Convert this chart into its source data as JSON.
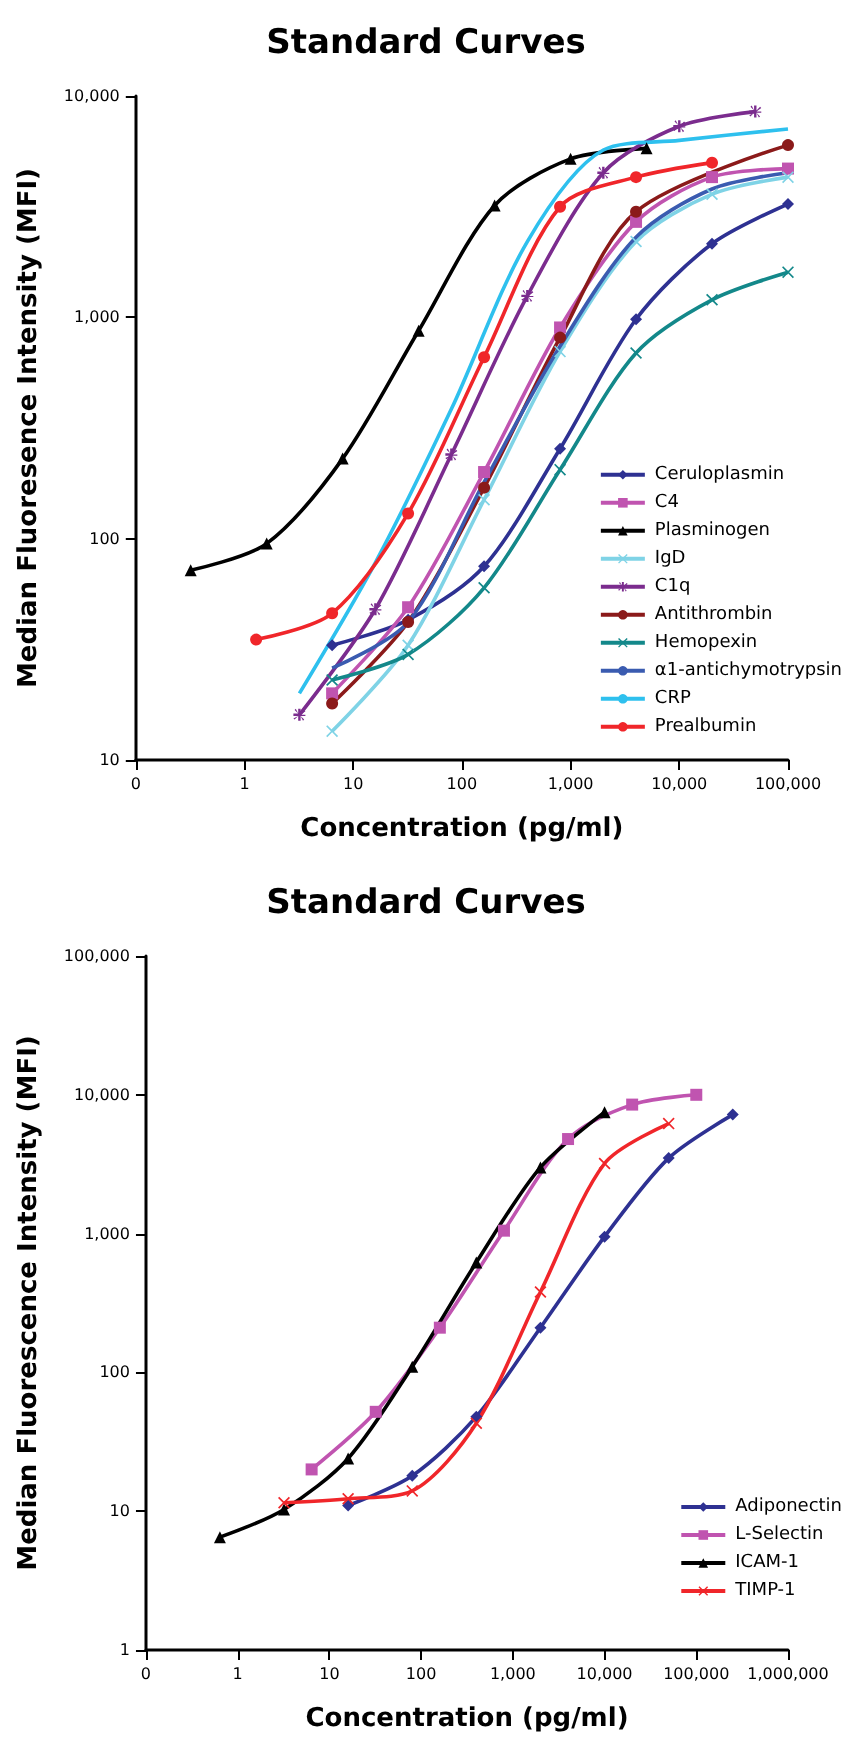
{
  "chart_data": [
    {
      "type": "line",
      "title": "Standard Curves",
      "xlabel": "Concentration (pg/ml)",
      "ylabel": "Median Fluoresence Intensity (MFI)",
      "log": "xy",
      "grid": false,
      "legend": "right",
      "xlim": [
        0.1,
        100000
      ],
      "xticks": [
        {
          "value": 0.1,
          "label": "0"
        },
        1,
        10,
        100,
        {
          "value": 1000,
          "label": "1,000"
        },
        {
          "value": 10000,
          "label": "10,000"
        },
        {
          "value": 100000,
          "label": "100,000"
        }
      ],
      "ylim": [
        10,
        10000
      ],
      "yticks": [
        10,
        100,
        {
          "value": 1000,
          "label": "1,000"
        },
        {
          "value": 10000,
          "label": "10,000"
        }
      ],
      "series": [
        {
          "name": "Ceruloplasmin",
          "color": "#2e3192",
          "marker": "diamond",
          "x": [
            6.4,
            32,
            160,
            800,
            4000,
            20000,
            100000
          ],
          "values": [
            33,
            43,
            75,
            255,
            980,
            2150,
            3250
          ]
        },
        {
          "name": "C4",
          "color": "#c054b0",
          "marker": "square",
          "x": [
            6.4,
            32,
            160,
            800,
            4000,
            20000,
            100000
          ],
          "values": [
            20,
            49,
            200,
            900,
            2700,
            4300,
            4700
          ]
        },
        {
          "name": "Plasminogen",
          "color": "#000000",
          "marker": "triangle",
          "x": [
            0.32,
            1.6,
            8,
            40,
            200,
            1000,
            5000
          ],
          "values": [
            72,
            95,
            230,
            870,
            3200,
            5200,
            5800
          ]
        },
        {
          "name": "IgD",
          "color": "#7fd3e6",
          "marker": "cross",
          "x": [
            6.4,
            32,
            160,
            800,
            4000,
            20000,
            100000
          ],
          "values": [
            13.5,
            33,
            150,
            700,
            2200,
            3600,
            4300
          ]
        },
        {
          "name": "C1q",
          "color": "#7b2c8e",
          "marker": "star",
          "x": [
            3.2,
            16,
            80,
            400,
            2000,
            10000,
            50000
          ],
          "values": [
            16,
            48,
            240,
            1250,
            4500,
            7300,
            8500
          ]
        },
        {
          "name": "Antithrombin",
          "color": "#8b1a1a",
          "marker": "circle",
          "x": [
            6.4,
            32,
            160,
            800,
            4000,
            100000
          ],
          "values": [
            18,
            42,
            170,
            810,
            3000,
            6000
          ]
        },
        {
          "name": "Hemopexin",
          "color": "#13888a",
          "marker": "cross",
          "x": [
            6.4,
            32,
            160,
            800,
            4000,
            20000,
            100000
          ],
          "values": [
            23,
            30,
            60,
            205,
            690,
            1200,
            1600
          ]
        },
        {
          "name": "α1-antichymotrypsin",
          "color": "#3a5bb0",
          "marker": "none",
          "x": [
            6.4,
            32,
            160,
            800,
            4000,
            20000,
            100000
          ],
          "values": [
            26,
            42,
            180,
            740,
            2300,
            3800,
            4500
          ]
        },
        {
          "name": "CRP",
          "color": "#2ec0ee",
          "marker": "none",
          "x": [
            3.2,
            16,
            80,
            400,
            2000,
            10000,
            100000
          ],
          "values": [
            20,
            78,
            385,
            2200,
            5700,
            6300,
            7100
          ]
        },
        {
          "name": "Prealbumin",
          "color": "#f0262a",
          "marker": "circle",
          "x": [
            1.28,
            6.4,
            32,
            160,
            800,
            4000,
            20000
          ],
          "values": [
            35,
            46,
            130,
            660,
            3160,
            4300,
            5000
          ]
        }
      ]
    },
    {
      "type": "line",
      "title": "Standard Curves",
      "xlabel": "Concentration (pg/ml)",
      "ylabel": "Median Fluorescence Intensity (MFI)",
      "log": "xy",
      "grid": false,
      "legend": "bottom right",
      "xlim": [
        0.1,
        1000000
      ],
      "xticks": [
        {
          "value": 0.1,
          "label": "0"
        },
        1,
        10,
        100,
        {
          "value": 1000,
          "label": "1,000"
        },
        {
          "value": 10000,
          "label": "10,000"
        },
        {
          "value": 100000,
          "label": "100,000"
        },
        {
          "value": 1000000,
          "label": "1,000,000"
        }
      ],
      "ylim": [
        1,
        100000
      ],
      "yticks": [
        1,
        10,
        100,
        {
          "value": 1000,
          "label": "1,000"
        },
        {
          "value": 10000,
          "label": "10,000"
        },
        {
          "value": 100000,
          "label": "100,000"
        }
      ],
      "series": [
        {
          "name": "Adiponectin",
          "color": "#2e3192",
          "marker": "diamond",
          "x": [
            16,
            80,
            400,
            2000,
            10000,
            50000,
            250000
          ],
          "values": [
            11,
            18,
            48,
            210,
            950,
            3500,
            7200
          ]
        },
        {
          "name": "L-Selectin",
          "color": "#c054b0",
          "marker": "square",
          "x": [
            6.4,
            32,
            160,
            800,
            4000,
            20000,
            100000
          ],
          "values": [
            20,
            52,
            210,
            1050,
            4800,
            8500,
            10000
          ]
        },
        {
          "name": "ICAM-1",
          "color": "#000000",
          "marker": "triangle",
          "x": [
            0.64,
            3.2,
            16,
            80,
            400,
            2000,
            10000
          ],
          "values": [
            6.5,
            10.3,
            24,
            110,
            620,
            3000,
            7500
          ]
        },
        {
          "name": "TIMP-1",
          "color": "#f0262a",
          "marker": "cross",
          "x": [
            3.2,
            16,
            80,
            400,
            2000,
            10000,
            50000
          ],
          "values": [
            11.5,
            12.3,
            14,
            43,
            380,
            3200,
            6200
          ]
        }
      ]
    }
  ]
}
